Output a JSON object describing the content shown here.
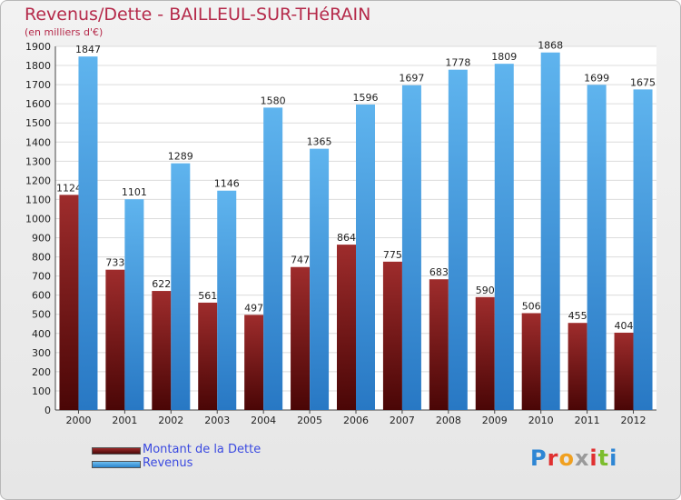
{
  "chart_data": {
    "type": "bar",
    "title": "Revenus/Dette - BAILLEUL-SUR-THéRAIN",
    "subtitle": "(en milliers d'€)",
    "categories": [
      "2000",
      "2001",
      "2002",
      "2003",
      "2004",
      "2005",
      "2006",
      "2007",
      "2008",
      "2009",
      "2010",
      "2011",
      "2012"
    ],
    "series": [
      {
        "name": "Montant de la Dette",
        "color": "#7a1a1a",
        "values": [
          1124,
          733,
          622,
          561,
          497,
          747,
          864,
          775,
          683,
          590,
          506,
          455,
          404
        ],
        "labels": [
          "1124",
          "733",
          "622",
          "561",
          "497",
          "747",
          "864",
          "775",
          "683",
          "590",
          "506",
          "455",
          "404"
        ]
      },
      {
        "name": "Revenus",
        "color": "#3d9de0",
        "values": [
          1847,
          1101,
          1289,
          1146,
          1580,
          1365,
          1596,
          1697,
          1778,
          1809,
          1868,
          1699,
          1675
        ],
        "labels": [
          "1847",
          "1101",
          "1289",
          "1146",
          "1580",
          "1365",
          "1596",
          "1697",
          "1778",
          "1809",
          "1868",
          "1699",
          "1675"
        ]
      }
    ],
    "ylim": [
      0,
      1900
    ],
    "yticks": [
      0,
      100,
      200,
      300,
      400,
      500,
      600,
      700,
      800,
      900,
      1000,
      1100,
      1200,
      1300,
      1400,
      1500,
      1600,
      1700,
      1800,
      1900
    ],
    "grid": true,
    "legend": "bottom-left"
  },
  "legend": {
    "debt_label": "Montant de la Dette",
    "revenue_label": "Revenus"
  },
  "logo": {
    "letters": [
      "P",
      "r",
      "o",
      "x",
      "i",
      "t",
      "i"
    ],
    "colors": [
      "#2e86d4",
      "#e03030",
      "#f0a020",
      "#9a9a9a",
      "#e03030",
      "#7cbd2e",
      "#2e86d4"
    ]
  }
}
